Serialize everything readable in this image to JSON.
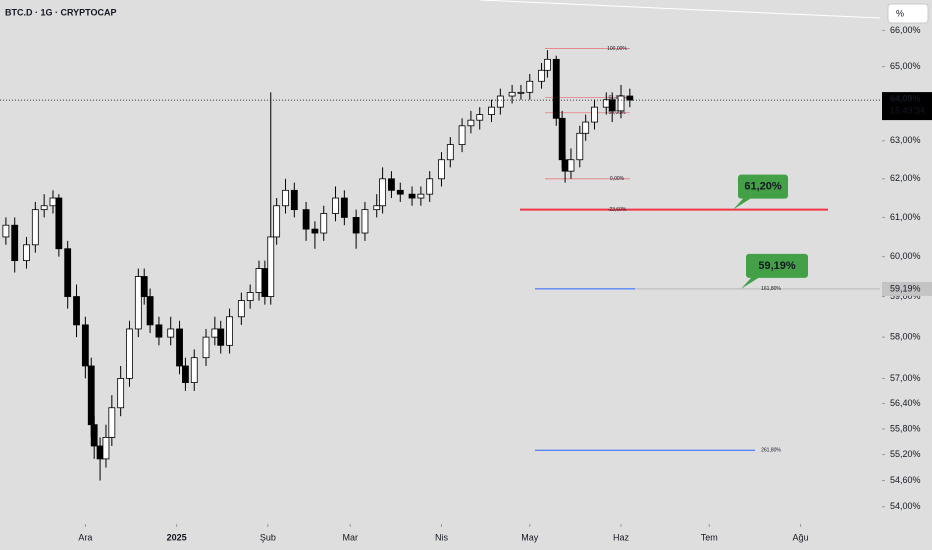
{
  "header": {
    "symbol": "BTC.D · 1G · CRYPTOCAP",
    "scale_button": "%"
  },
  "chart_data": {
    "type": "candlestick",
    "x": [
      2,
      5,
      9,
      12,
      15,
      18,
      20,
      23,
      26,
      29,
      31,
      32,
      34,
      36,
      38,
      41,
      44,
      47,
      49,
      51,
      54,
      58,
      61,
      63,
      66,
      70,
      73,
      75,
      78,
      82,
      85,
      88,
      90,
      92,
      94,
      97,
      100,
      104,
      107,
      110,
      114,
      117,
      121,
      124,
      128,
      130,
      133,
      136,
      140,
      143,
      146,
      150,
      153,
      157,
      160,
      163,
      167,
      170,
      174,
      177,
      180,
      184,
      186,
      189,
      191,
      192,
      194,
      197,
      199,
      202,
      206,
      208,
      211,
      214
    ],
    "open": [
      60.5,
      60.8,
      59.9,
      60.3,
      61.2,
      61.3,
      61.5,
      60.2,
      59.0,
      58.3,
      57.3,
      55.9,
      55.4,
      55.1,
      55.6,
      56.3,
      57.0,
      58.2,
      59.5,
      59.0,
      58.3,
      58.0,
      58.2,
      57.3,
      56.9,
      57.5,
      58.0,
      58.2,
      57.8,
      58.5,
      58.9,
      59.1,
      59.7,
      59.0,
      60.5,
      61.3,
      61.7,
      61.2,
      60.7,
      60.6,
      61.1,
      61.5,
      61.0,
      60.6,
      61.2,
      61.3,
      62.0,
      61.7,
      61.6,
      61.5,
      61.6,
      62.0,
      62.5,
      62.9,
      63.4,
      63.55,
      63.7,
      63.9,
      64.2,
      64.3,
      64.3,
      64.6,
      64.9,
      65.2,
      63.6,
      62.5,
      62.2,
      62.5,
      63.2,
      63.5,
      63.9,
      64.1,
      63.8,
      64.2
    ],
    "high": [
      61.0,
      61.0,
      60.5,
      61.4,
      61.6,
      61.7,
      61.6,
      60.4,
      59.3,
      58.5,
      57.5,
      56.1,
      55.6,
      55.9,
      56.6,
      57.3,
      58.4,
      59.7,
      59.7,
      59.2,
      58.5,
      58.5,
      58.4,
      57.5,
      57.7,
      58.2,
      58.5,
      58.4,
      58.7,
      59.1,
      59.3,
      59.9,
      59.9,
      64.3,
      61.5,
      62.0,
      61.9,
      61.4,
      60.9,
      61.3,
      61.8,
      61.7,
      61.2,
      61.4,
      61.6,
      62.3,
      62.2,
      61.9,
      61.8,
      61.8,
      62.2,
      62.7,
      63.1,
      63.6,
      63.8,
      63.9,
      64.1,
      64.4,
      64.5,
      64.5,
      64.8,
      65.1,
      65.45,
      65.3,
      63.8,
      62.7,
      62.8,
      63.4,
      63.7,
      64.1,
      64.3,
      64.3,
      64.5,
      64.4
    ],
    "low": [
      60.3,
      59.6,
      59.7,
      60.1,
      61.0,
      61.1,
      60.0,
      58.7,
      58.0,
      57.0,
      55.6,
      55.1,
      54.6,
      54.9,
      55.4,
      56.1,
      56.8,
      58.0,
      58.8,
      58.1,
      57.8,
      57.8,
      57.1,
      56.7,
      56.7,
      57.3,
      57.8,
      57.6,
      57.6,
      58.3,
      58.7,
      58.9,
      58.8,
      58.8,
      60.3,
      61.1,
      61.0,
      60.4,
      60.2,
      60.4,
      60.9,
      60.8,
      60.2,
      60.4,
      61.0,
      61.1,
      61.5,
      61.4,
      61.3,
      61.3,
      61.4,
      61.8,
      62.3,
      62.7,
      63.2,
      63.3,
      63.5,
      63.7,
      64.0,
      64.1,
      64.1,
      64.4,
      64.7,
      63.4,
      62.3,
      61.9,
      62.0,
      62.3,
      63.0,
      63.3,
      63.7,
      63.5,
      63.6,
      63.9
    ],
    "close": [
      60.8,
      59.9,
      60.3,
      61.2,
      61.3,
      61.5,
      60.2,
      59.0,
      58.3,
      57.3,
      55.9,
      55.4,
      55.1,
      55.6,
      56.3,
      57.0,
      58.2,
      59.5,
      59.0,
      58.3,
      58.0,
      58.2,
      57.3,
      56.9,
      57.5,
      58.0,
      58.2,
      57.8,
      58.5,
      58.9,
      59.1,
      59.7,
      59.0,
      60.5,
      61.3,
      61.7,
      61.2,
      60.7,
      60.6,
      61.1,
      61.5,
      61.0,
      60.6,
      61.2,
      61.3,
      62.0,
      61.7,
      61.6,
      61.5,
      61.6,
      62.0,
      62.5,
      62.9,
      63.4,
      63.55,
      63.7,
      63.9,
      64.2,
      64.3,
      64.3,
      64.6,
      64.9,
      65.2,
      63.6,
      62.5,
      62.2,
      62.5,
      63.2,
      63.5,
      63.9,
      64.1,
      63.8,
      64.2,
      64.09
    ],
    "up_color": "#ffffff",
    "down_color": "#000000",
    "xlim": [
      0,
      299
    ],
    "xticks": [
      {
        "value": 29,
        "label": "Ara"
      },
      {
        "value": 60,
        "label": "2025"
      },
      {
        "value": 91,
        "label": "Şub"
      },
      {
        "value": 119,
        "label": "Mar"
      },
      {
        "value": 150,
        "label": "Nis"
      },
      {
        "value": 180,
        "label": "May"
      },
      {
        "value": 211,
        "label": "Haz"
      },
      {
        "value": 241,
        "label": "Tem"
      },
      {
        "value": 272,
        "label": "Ağu"
      }
    ],
    "ylim": [
      53.7,
      66.85
    ],
    "log_scale": true,
    "grid": false,
    "yticks": [
      {
        "value": 66,
        "label": "66,00%"
      },
      {
        "value": 65,
        "label": "65,00%"
      },
      {
        "value": 63,
        "label": "63,00%"
      },
      {
        "value": 62,
        "label": "62,00%"
      },
      {
        "value": 61,
        "label": "61,00%"
      },
      {
        "value": 60,
        "label": "60,00%"
      },
      {
        "value": 59,
        "label": "59,00%"
      },
      {
        "value": 58,
        "label": "58,00%"
      },
      {
        "value": 57,
        "label": "57,00%"
      },
      {
        "value": 56.4,
        "label": "56,40%"
      },
      {
        "value": 55.8,
        "label": "55,80%"
      },
      {
        "value": 55.2,
        "label": "55,20%"
      },
      {
        "value": 54.6,
        "label": "54,60%"
      },
      {
        "value": 54,
        "label": "54,00%"
      }
    ],
    "last_price": {
      "value": 64.09,
      "label": "64,09%",
      "countdown": "15:49:34"
    },
    "fib": {
      "color": "#f23645",
      "levels": [
        {
          "value": 65.5,
          "label": "100,00%"
        },
        {
          "value": 64.16,
          "label": "61,80%"
        },
        {
          "value": 63.75,
          "label": "50,00%"
        },
        {
          "value": 62.0,
          "label": "0,00%"
        }
      ]
    },
    "levels": [
      {
        "value": 61.2,
        "label": "-23,60%",
        "color": "#f23645",
        "callout": "61,20%"
      },
      {
        "value": 59.19,
        "label": "161,80%",
        "color": "#2962ff",
        "callout": "59,19%",
        "price_tag": "59,19%"
      },
      {
        "value": 55.3,
        "label": "261,80%",
        "color": "#2962ff"
      }
    ]
  }
}
